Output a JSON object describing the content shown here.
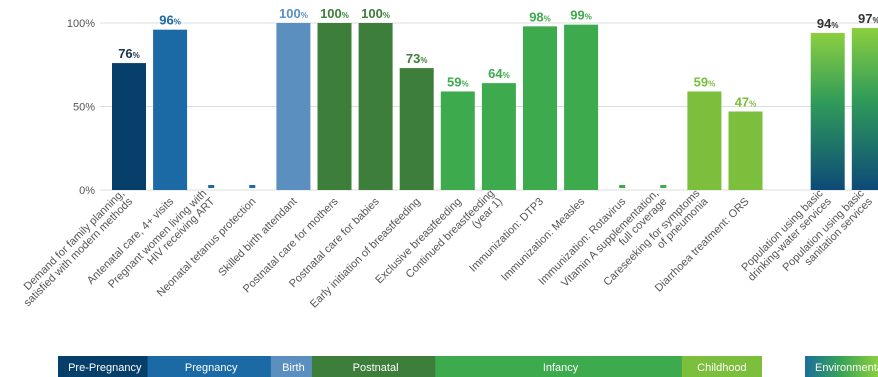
{
  "chart_data": {
    "type": "bar",
    "ylim": [
      0,
      100
    ],
    "y_ticks": [
      "0%",
      "50%",
      "100%"
    ],
    "grid": true,
    "categories": [
      "Demand for family planning, satisfied with modern methods",
      "Antenatal care, 4+ visits",
      "Pregnant women living with HIV receiving ART",
      "Neonatal tetanus protection",
      "Skilled birth attendant",
      "Postnatal care for mothers",
      "Postnatal care for babies",
      "Early initiation of breastfeeding",
      "Exclusive breastfeeding",
      "Continued breastfeeding (year 1)",
      "Immunization: DTP3",
      "Immunization: Measles",
      "Immunization: Rotavirus",
      "Vitamin A supplementation, full coverage",
      "Careseeking for symptoms of pneumonia",
      "Diarrhoea treatment: ORS",
      "",
      "Population using basic drinking-water services",
      "Population using basic sanitation services"
    ],
    "label_lines": [
      [
        "Demand for family planning,",
        "satisfied with modern methods"
      ],
      [
        "Antenatal care, 4+ visits"
      ],
      [
        "Pregnant women living with",
        "HIV receiving ART"
      ],
      [
        "Neonatal tetanus protection"
      ],
      [
        "Skilled birth attendant"
      ],
      [
        "Postnatal care for mothers"
      ],
      [
        "Postnatal care for babies"
      ],
      [
        "Early initiation of breastfeeding"
      ],
      [
        "Exclusive breastfeeding"
      ],
      [
        "Continued breastfeeding",
        "(year 1)"
      ],
      [
        "Immunization: DTP3"
      ],
      [
        "Immunization: Measles"
      ],
      [
        "Immunization: Rotavirus"
      ],
      [
        "Vitamin A supplementation,",
        "full coverage"
      ],
      [
        "Careseeking for symptoms",
        "of pneumonia"
      ],
      [
        "Diarrhoea treatment: ORS"
      ],
      [],
      [
        "Population using basic",
        "drinking-water services"
      ],
      [
        "Population using basic",
        "sanitation services"
      ]
    ],
    "values": [
      76,
      96,
      null,
      null,
      100,
      100,
      100,
      73,
      59,
      64,
      98,
      99,
      null,
      null,
      59,
      47,
      null,
      94,
      97
    ],
    "value_labels": [
      "76",
      "96",
      "",
      "",
      "100",
      "100",
      "100",
      "73",
      "59",
      "64",
      "98",
      "99",
      "",
      "",
      "59",
      "47",
      "",
      "94",
      "97"
    ],
    "bar_colors": [
      "#073f6b",
      "#1b6aa5",
      "#1b6aa5",
      "#1b6aa5",
      "#5a8fc0",
      "#3d7f3a",
      "#3d7f3a",
      "#3d7f3a",
      "#3eaa4e",
      "#3eaa4e",
      "#3eaa4e",
      "#3eaa4e",
      "#3eaa4e",
      "#3eaa4e",
      "#7bbf3c",
      "#7bbf3c",
      "",
      "gradient",
      "gradient"
    ],
    "label_colors": [
      "#1a3550",
      "#1b6aa5",
      "",
      "",
      "#5a8fc0",
      "#3d7f3a",
      "#3d7f3a",
      "#3d7f3a",
      "#3eaa4e",
      "#3eaa4e",
      "#3eaa4e",
      "#3eaa4e",
      "",
      "",
      "#7bbf3c",
      "#7bbf3c",
      "",
      "#333333",
      "#333333"
    ],
    "gradient": [
      "#1a6f9a",
      "#3aa457",
      "#8bcf3f"
    ],
    "stages": [
      {
        "name": "Pre-Pregnancy",
        "color": "#073f6b",
        "from": 0,
        "to": 0
      },
      {
        "name": "Pregnancy",
        "color": "#1b6aa5",
        "from": 1,
        "to": 3
      },
      {
        "name": "Birth",
        "color": "#5a8fc0",
        "from": 4,
        "to": 4
      },
      {
        "name": "Postnatal",
        "color": "#3d7f3a",
        "from": 5,
        "to": 7
      },
      {
        "name": "Infancy",
        "color": "#3eaa4e",
        "from": 8,
        "to": 13
      },
      {
        "name": "Childhood",
        "color": "#7bbf3c",
        "from": 14,
        "to": 15
      },
      {
        "name": "Environmental",
        "color": "gradient",
        "from": 17,
        "to": 18
      }
    ]
  }
}
